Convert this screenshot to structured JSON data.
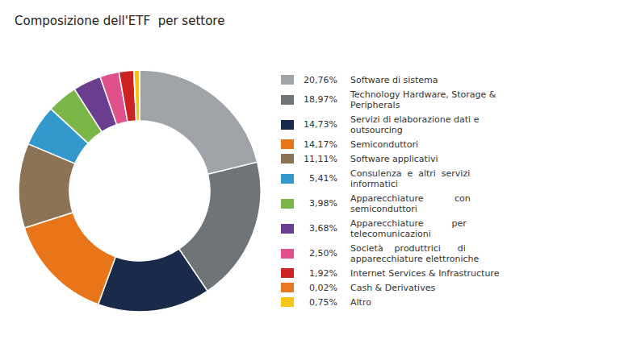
{
  "chart_data": {
    "type": "pie",
    "title": "Composizione dell'ETF  per settore",
    "categories": [
      "Software di sistema",
      "Technology Hardware, Storage &\nPeripherals",
      "Servizi di elaborazione dati e\noutsourcing",
      "Semiconduttori",
      "Software applicativi",
      "Consulenza  e  altri  servizi\ninformatici",
      "Apparecchiature           con\nsemiconduttori",
      "Apparecchiature          per\ntelecomunicazioni",
      "Società    produttrici      di\napparecchiature elettroniche",
      "Internet Services & Infrastructure",
      "Cash & Derivatives",
      "Altro"
    ],
    "values": [
      20.76,
      18.97,
      14.73,
      14.17,
      11.11,
      5.41,
      3.98,
      3.68,
      2.5,
      1.92,
      0.02,
      0.75
    ],
    "value_labels": [
      "20,76%",
      "18,97%",
      "14,73%",
      "14,17%",
      "11,11%",
      " 5,41%",
      " 3,98%",
      " 3,68%",
      " 2,50%",
      " 1,92%",
      " 0,02%",
      " 0,75%"
    ],
    "colors": [
      "#a0a4a8",
      "#6e7478",
      "#1a2a4a",
      "#e8751a",
      "#8b7355",
      "#3399cc",
      "#7ab648",
      "#6a3d8f",
      "#e0508a",
      "#cc2222",
      "#e87820",
      "#f5c518"
    ],
    "legend": "right"
  }
}
